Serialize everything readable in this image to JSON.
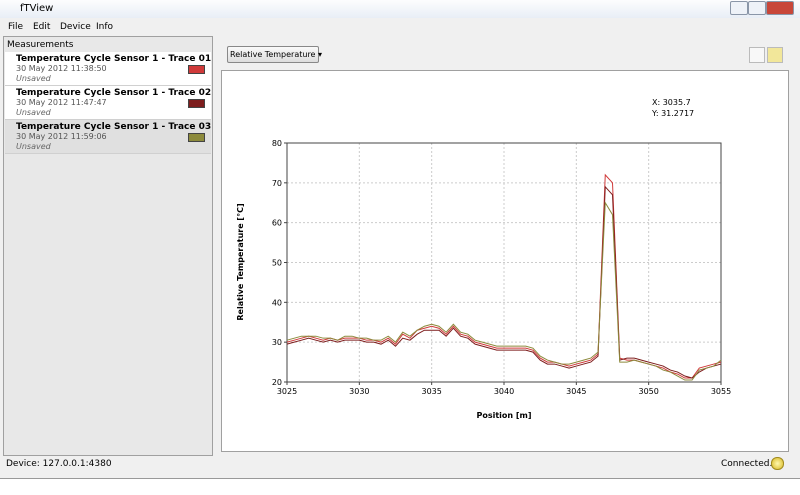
{
  "window": {
    "title": "fTView"
  },
  "menu": [
    "File",
    "Edit",
    "Device",
    "Info"
  ],
  "panel_title": "Measurements",
  "measurements": [
    {
      "date": "30 May 2012 11:38:50",
      "status": "Unsaved"
    },
    {
      "date": "30 May 2012 11:47:47",
      "status": "Unsaved"
    },
    {
      "date": "30 May 2012 11:59:06",
      "status": "Unsaved"
    }
  ],
  "dropdown": "Relative Temperature",
  "cursor": {
    "x": "X: 3035.7",
    "y": "Y: 31.2717"
  },
  "status": {
    "device": "Device: 127.0.0.1:4380",
    "connection": "Connected."
  },
  "chart_data": {
    "type": "line",
    "x_label": "Position [m]",
    "y_label": "Relative Temperature [°C]",
    "xlim": [
      3025,
      3055
    ],
    "xticks": [
      3025,
      3030,
      3035,
      3040,
      3045,
      3050,
      3055
    ],
    "ylim": [
      20,
      80
    ],
    "yticks": [
      20,
      30,
      40,
      50,
      60,
      70,
      80
    ],
    "grid": true,
    "x": [
      3025,
      3025.5,
      3026,
      3026.5,
      3027,
      3027.5,
      3028,
      3028.5,
      3029,
      3029.5,
      3030,
      3030.5,
      3031,
      3031.5,
      3032,
      3032.5,
      3033,
      3033.5,
      3034,
      3034.5,
      3035,
      3035.5,
      3036,
      3036.5,
      3037,
      3037.5,
      3038,
      3038.5,
      3039,
      3039.5,
      3040,
      3040.5,
      3041,
      3041.5,
      3042,
      3042.5,
      3043,
      3043.5,
      3044,
      3044.5,
      3045,
      3045.5,
      3046,
      3046.5,
      3047,
      3047.5,
      3048,
      3048.5,
      3049,
      3049.5,
      3050,
      3050.5,
      3051,
      3051.5,
      3052,
      3052.5,
      3053,
      3053.5,
      3054,
      3054.5,
      3055
    ],
    "series": [
      {
        "name": "Temperature Cycle Sensor 1 - Trace 01",
        "color": "#d03a3a",
        "values": [
          30,
          30.5,
          31,
          31.5,
          31,
          30.5,
          31,
          30.5,
          31,
          31,
          31,
          30.5,
          30.5,
          30,
          31,
          29.5,
          32,
          31,
          33,
          33.5,
          34,
          33.5,
          32,
          34,
          32,
          31.5,
          30,
          29.5,
          29,
          28.5,
          28.5,
          28.5,
          28.5,
          28.5,
          28,
          26,
          25,
          25,
          24.5,
          24,
          24.5,
          25,
          25.5,
          27,
          72,
          70,
          26,
          25.5,
          25.5,
          25,
          24.5,
          24,
          23.5,
          22.5,
          22,
          21,
          21,
          23.5,
          24,
          24.5,
          25
        ]
      },
      {
        "name": "Temperature Cycle Sensor 1 - Trace 02",
        "color": "#7d1d1d",
        "values": [
          29.5,
          30,
          30.5,
          31,
          30.5,
          30,
          30.5,
          30,
          30.5,
          30.5,
          30.5,
          30,
          30,
          29.5,
          30.5,
          29,
          31,
          30.5,
          32,
          33,
          33,
          33,
          31.5,
          33.5,
          31.5,
          31,
          29.5,
          29,
          28.5,
          28,
          28,
          28,
          28,
          28,
          27.5,
          25.5,
          24.5,
          24.5,
          24,
          23.5,
          24,
          24.5,
          25,
          26.5,
          69,
          67,
          25.5,
          26,
          26,
          25.5,
          25,
          24.5,
          24,
          23,
          22.5,
          21.5,
          21,
          22.5,
          23.5,
          24,
          24.5
        ]
      },
      {
        "name": "Temperature Cycle Sensor 1 - Trace 03",
        "color": "#8c8a3c",
        "values": [
          30.5,
          31,
          31.5,
          31.5,
          31.5,
          31,
          31,
          30.5,
          31.5,
          31.5,
          31,
          31,
          30.5,
          30.5,
          31.5,
          30,
          32.5,
          31.5,
          33,
          34,
          34.5,
          34,
          32.5,
          34.5,
          32.5,
          32,
          30.5,
          30,
          29.5,
          29,
          29,
          29,
          29,
          29,
          28.5,
          26.5,
          25.5,
          25,
          24.5,
          24.5,
          25,
          25.5,
          26,
          27.5,
          65,
          62,
          25,
          25,
          25.5,
          25,
          24.5,
          24,
          23,
          22.5,
          21.5,
          20.5,
          20.5,
          23,
          23.5,
          24,
          25.5
        ]
      }
    ]
  }
}
